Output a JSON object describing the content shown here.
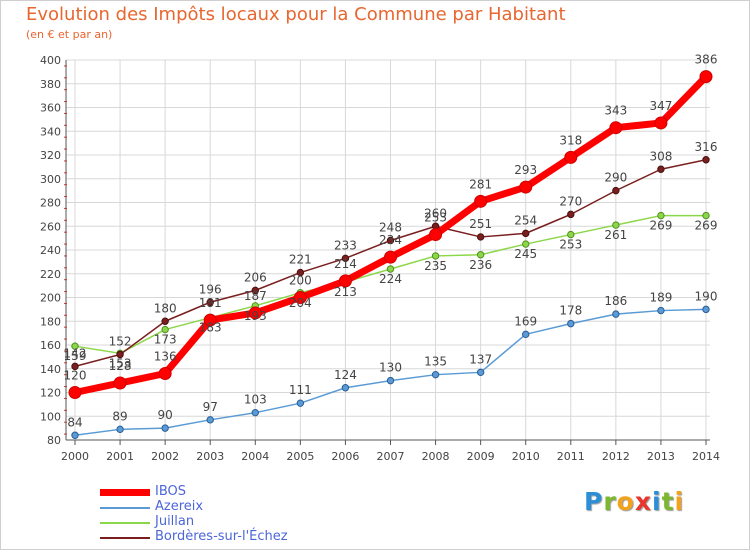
{
  "chart_data": {
    "type": "line",
    "title": "Evolution des Impôts locaux pour la Commune par Habitant",
    "subtitle": "(en € et par an)",
    "xlabel": "",
    "ylabel": "",
    "ylim": [
      80,
      400
    ],
    "yticks": [
      80,
      100,
      120,
      140,
      160,
      180,
      200,
      220,
      240,
      260,
      280,
      300,
      320,
      340,
      360,
      380,
      400
    ],
    "x": [
      "2000",
      "2001",
      "2002",
      "2003",
      "2004",
      "2005",
      "2006",
      "2007",
      "2008",
      "2009",
      "2010",
      "2011",
      "2012",
      "2013",
      "2014"
    ],
    "grid": true,
    "legend_position": "bottom-left",
    "series": [
      {
        "name": "IBOS",
        "color": "#ff0000",
        "values": [
          120,
          128,
          136,
          181,
          187,
          200,
          214,
          234,
          253,
          281,
          293,
          318,
          343,
          347,
          386
        ]
      },
      {
        "name": "Azereix",
        "color": "#5b9bd5",
        "values": [
          84,
          89,
          90,
          97,
          103,
          111,
          124,
          130,
          135,
          137,
          169,
          178,
          186,
          189,
          190
        ]
      },
      {
        "name": "Juillan",
        "color": "#8cd64a",
        "values": [
          159,
          153,
          173,
          183,
          193,
          204,
          213,
          224,
          235,
          236,
          245,
          253,
          261,
          269,
          269
        ]
      },
      {
        "name": "Bordères-sur-l'Échez",
        "color": "#7a1f1f",
        "values": [
          142,
          152,
          180,
          196,
          206,
          221,
          233,
          248,
          260,
          251,
          254,
          270,
          290,
          308,
          316
        ]
      }
    ]
  },
  "logo": {
    "letters": [
      "P",
      "r",
      "o",
      "x",
      "i",
      "t",
      "i"
    ],
    "colors": [
      "#2b8fd8",
      "#7cb82f",
      "#f2a31b",
      "#e8352d",
      "#2b8fd8",
      "#7cb82f",
      "#f2a31b"
    ]
  }
}
